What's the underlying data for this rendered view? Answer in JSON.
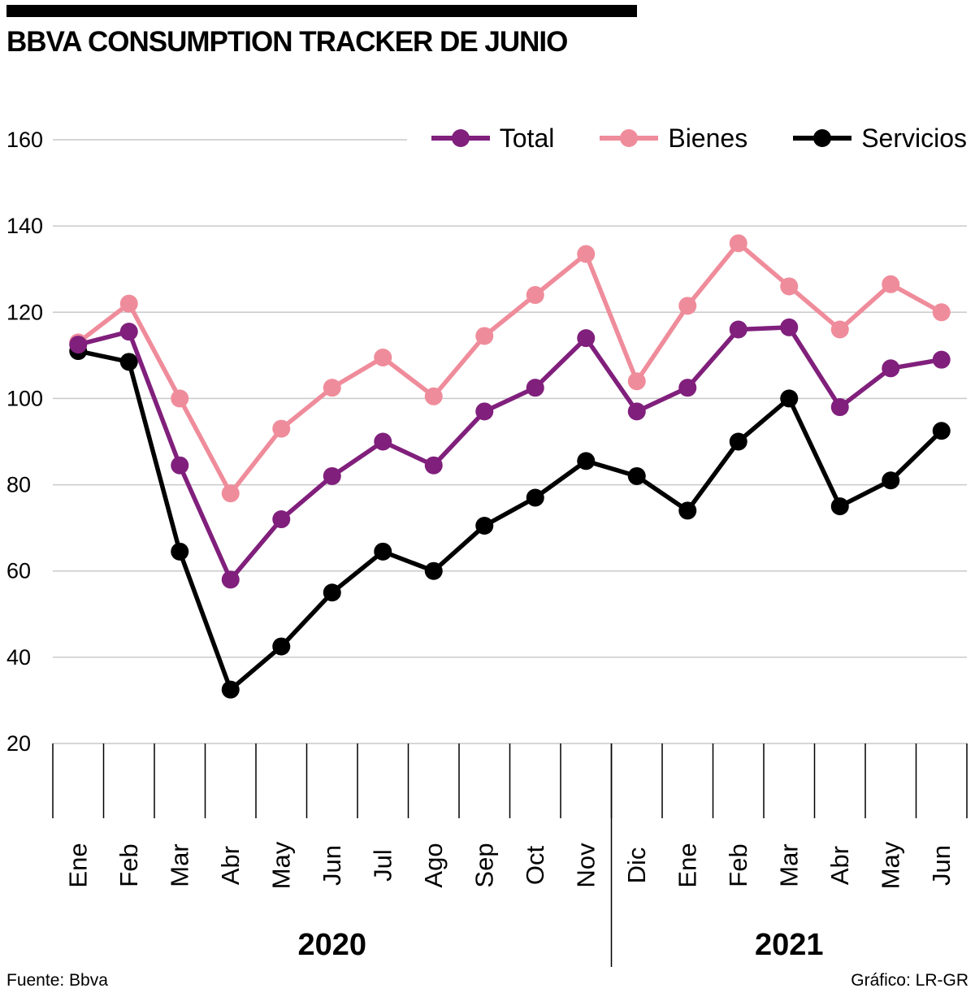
{
  "header": {
    "title": "BBVA CONSUMPTION TRACKER DE JUNIO"
  },
  "legend": [
    {
      "label": "Total",
      "color": "#801f7c"
    },
    {
      "label": "Bienes",
      "color": "#ef8c9b"
    },
    {
      "label": "Servicios",
      "color": "#000000"
    }
  ],
  "chart_data": {
    "type": "line",
    "title": "BBVA CONSUMPTION TRACKER DE JUNIO",
    "categories": [
      "Ene",
      "Feb",
      "Mar",
      "Abr",
      "May",
      "Jun",
      "Jul",
      "Ago",
      "Sep",
      "Oct",
      "Nov",
      "Dic",
      "Ene",
      "Feb",
      "Mar",
      "Abr",
      "May",
      "Jun"
    ],
    "year_groups": [
      {
        "label": "2020",
        "start": 0,
        "end": 10
      },
      {
        "label": "2021",
        "start": 11,
        "end": 17
      }
    ],
    "series": [
      {
        "name": "Total",
        "color": "#801f7c",
        "values": [
          112.5,
          115.5,
          84.5,
          58,
          72,
          82,
          90,
          84.5,
          97,
          102.5,
          114,
          97,
          102.5,
          116,
          116.5,
          98,
          107,
          109
        ]
      },
      {
        "name": "Bienes",
        "color": "#ef8c9b",
        "values": [
          113,
          122,
          100,
          78,
          93,
          102.5,
          109.5,
          100.5,
          114.5,
          124,
          133.5,
          104,
          121.5,
          136,
          126,
          116,
          126.5,
          120
        ]
      },
      {
        "name": "Servicios",
        "color": "#000000",
        "values": [
          111,
          108.5,
          64.5,
          32.5,
          42.5,
          55,
          64.5,
          60,
          70.5,
          77,
          85.5,
          82,
          74,
          90,
          100,
          75,
          81,
          92.5
        ]
      }
    ],
    "ylim": [
      20,
      160
    ],
    "yticks": [
      20,
      40,
      60,
      80,
      100,
      120,
      140,
      160
    ],
    "xlabel": "",
    "ylabel": "",
    "grid": true,
    "grid_color": "#c9c9c9",
    "legend_position": "top-right"
  },
  "footer": {
    "source": "Fuente: Bbva",
    "credit": "Gráfico: LR-GR"
  }
}
